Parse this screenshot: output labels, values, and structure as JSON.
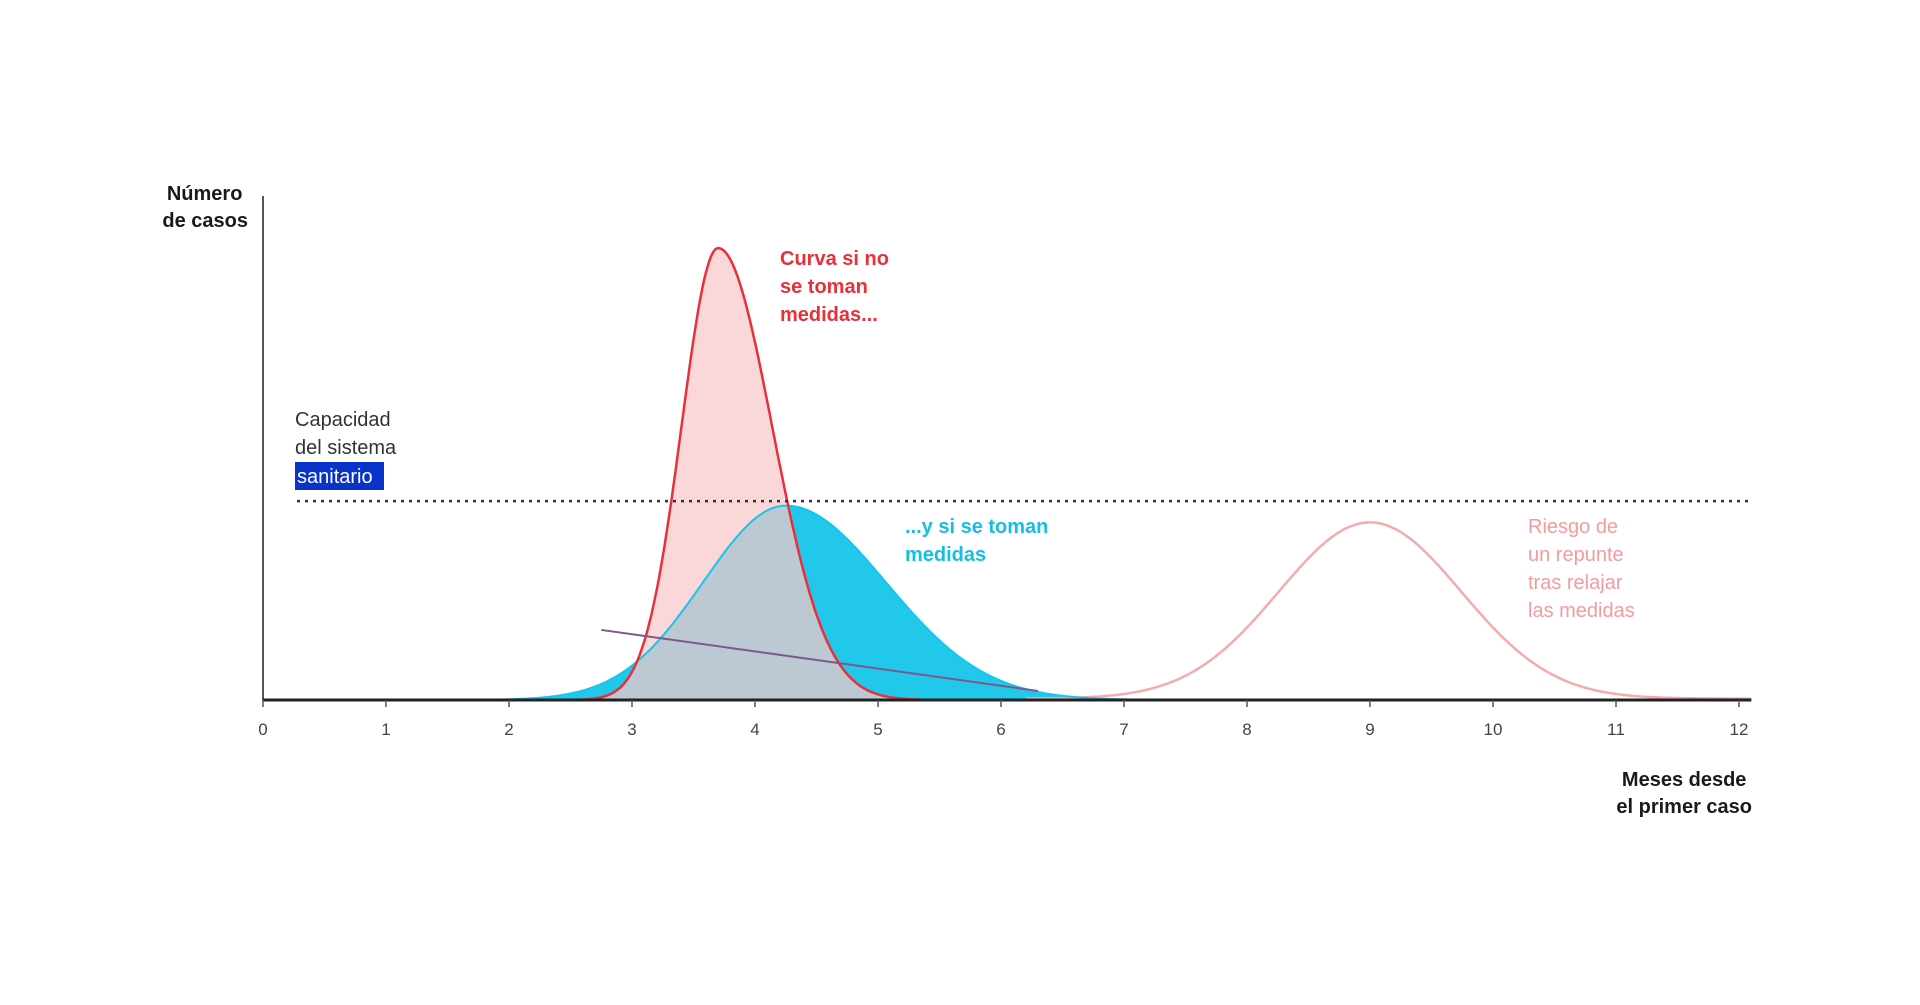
{
  "chart_data": {
    "type": "area",
    "ylabel": [
      "Número",
      "de casos"
    ],
    "xlabel": [
      "Meses desde",
      "el primer caso"
    ],
    "x_ticks": [
      0,
      1,
      2,
      3,
      4,
      5,
      6,
      7,
      8,
      9,
      10,
      11,
      12
    ],
    "xlim": [
      0,
      12.1
    ],
    "ylim": [
      0,
      100
    ],
    "capacity": {
      "value": 44,
      "label": [
        "Capacidad",
        "del sistema",
        "sanitario"
      ]
    },
    "series": [
      {
        "key": "no_measures",
        "label": [
          "Curva si no",
          "se toman",
          "medidas..."
        ],
        "color": "#e8303a",
        "fill": "#f8c7c9",
        "peak_x": 3.7,
        "peak_y": 100
      },
      {
        "key": "measures",
        "label": [
          "...y si se toman",
          "medidas"
        ],
        "color": "#16c6ea",
        "fill": "#22c8ea",
        "peak_x": 4.25,
        "peak_y": 43
      },
      {
        "key": "rebound",
        "label": [
          "Riesgo de",
          "un repunte",
          "tras relajar",
          "las medidas"
        ],
        "color": "#f7aaad",
        "peak_x": 9.0,
        "peak_y": 39
      }
    ]
  }
}
